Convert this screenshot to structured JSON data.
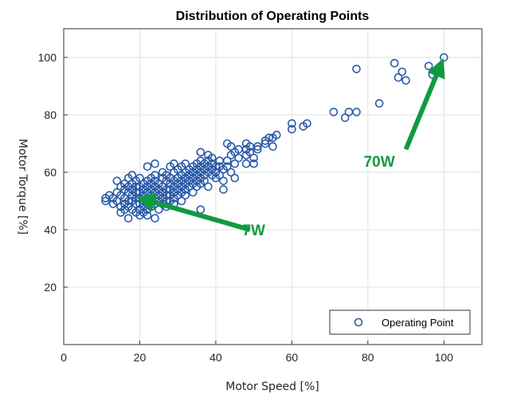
{
  "chart_data": {
    "type": "scatter",
    "title": "Distribution of Operating Points",
    "xlabel": "Motor Speed [%]",
    "ylabel": "Motor Torque [%]",
    "xlim": [
      0,
      110
    ],
    "ylim": [
      0,
      110
    ],
    "xticks": [
      "0",
      "20",
      "40",
      "60",
      "80",
      "100"
    ],
    "yticks": [
      "20",
      "40",
      "60",
      "80",
      "100"
    ],
    "grid": true,
    "legend_position": "bottom-right",
    "colors": {
      "marker": "#2a5aa8",
      "annotation": "#109a3f",
      "grid": "#e2e2e2",
      "axis": "#333333"
    },
    "series": [
      {
        "name": "Operating Point",
        "points": [
          [
            11,
            51
          ],
          [
            11,
            50
          ],
          [
            12,
            52
          ],
          [
            13,
            51
          ],
          [
            13,
            49
          ],
          [
            14,
            53
          ],
          [
            14,
            50
          ],
          [
            14,
            57
          ],
          [
            15,
            55
          ],
          [
            15,
            52
          ],
          [
            15,
            48
          ],
          [
            15,
            46
          ],
          [
            16,
            56
          ],
          [
            16,
            54
          ],
          [
            16,
            51
          ],
          [
            16,
            49
          ],
          [
            16,
            47
          ],
          [
            17,
            58
          ],
          [
            17,
            55
          ],
          [
            17,
            53
          ],
          [
            17,
            50
          ],
          [
            17,
            48
          ],
          [
            17,
            44
          ],
          [
            18,
            56
          ],
          [
            18,
            54
          ],
          [
            18,
            52
          ],
          [
            18,
            50
          ],
          [
            18,
            47
          ],
          [
            18,
            59
          ],
          [
            19,
            57
          ],
          [
            19,
            55
          ],
          [
            19,
            53
          ],
          [
            19,
            51
          ],
          [
            19,
            49
          ],
          [
            19,
            46
          ],
          [
            20,
            58
          ],
          [
            20,
            55
          ],
          [
            20,
            53
          ],
          [
            20,
            51
          ],
          [
            20,
            49
          ],
          [
            20,
            47
          ],
          [
            20,
            45
          ],
          [
            21,
            56
          ],
          [
            21,
            54
          ],
          [
            21,
            52
          ],
          [
            21,
            50
          ],
          [
            21,
            48
          ],
          [
            21,
            46
          ],
          [
            22,
            62
          ],
          [
            22,
            57
          ],
          [
            22,
            55
          ],
          [
            22,
            53
          ],
          [
            22,
            51
          ],
          [
            22,
            49
          ],
          [
            22,
            47
          ],
          [
            22,
            45
          ],
          [
            23,
            58
          ],
          [
            23,
            56
          ],
          [
            23,
            54
          ],
          [
            23,
            52
          ],
          [
            23,
            50
          ],
          [
            23,
            48
          ],
          [
            24,
            63
          ],
          [
            24,
            59
          ],
          [
            24,
            57
          ],
          [
            24,
            55
          ],
          [
            24,
            53
          ],
          [
            24,
            51
          ],
          [
            24,
            49
          ],
          [
            24,
            44
          ],
          [
            25,
            56
          ],
          [
            25,
            54
          ],
          [
            25,
            52
          ],
          [
            25,
            50
          ],
          [
            25,
            47
          ],
          [
            26,
            60
          ],
          [
            26,
            58
          ],
          [
            26,
            55
          ],
          [
            26,
            53
          ],
          [
            26,
            51
          ],
          [
            26,
            49
          ],
          [
            27,
            59
          ],
          [
            27,
            57
          ],
          [
            27,
            54
          ],
          [
            27,
            52
          ],
          [
            27,
            50
          ],
          [
            27,
            48
          ],
          [
            28,
            62
          ],
          [
            28,
            58
          ],
          [
            28,
            56
          ],
          [
            28,
            54
          ],
          [
            28,
            52
          ],
          [
            28,
            50
          ],
          [
            29,
            63
          ],
          [
            29,
            60
          ],
          [
            29,
            57
          ],
          [
            29,
            55
          ],
          [
            29,
            53
          ],
          [
            29,
            51
          ],
          [
            29,
            49
          ],
          [
            30,
            61
          ],
          [
            30,
            58
          ],
          [
            30,
            56
          ],
          [
            30,
            54
          ],
          [
            30,
            52
          ],
          [
            31,
            62
          ],
          [
            31,
            59
          ],
          [
            31,
            57
          ],
          [
            31,
            55
          ],
          [
            31,
            53
          ],
          [
            31,
            50
          ],
          [
            32,
            63
          ],
          [
            32,
            60
          ],
          [
            32,
            58
          ],
          [
            32,
            56
          ],
          [
            32,
            54
          ],
          [
            32,
            52
          ],
          [
            33,
            61
          ],
          [
            33,
            59
          ],
          [
            33,
            57
          ],
          [
            33,
            55
          ],
          [
            34,
            62
          ],
          [
            34,
            60
          ],
          [
            34,
            58
          ],
          [
            34,
            56
          ],
          [
            34,
            53
          ],
          [
            35,
            63
          ],
          [
            35,
            61
          ],
          [
            35,
            59
          ],
          [
            35,
            57
          ],
          [
            35,
            55
          ],
          [
            36,
            67
          ],
          [
            36,
            64
          ],
          [
            36,
            62
          ],
          [
            36,
            60
          ],
          [
            36,
            58
          ],
          [
            36,
            56
          ],
          [
            36,
            47
          ],
          [
            37,
            63
          ],
          [
            37,
            61
          ],
          [
            37,
            59
          ],
          [
            37,
            57
          ],
          [
            38,
            66
          ],
          [
            38,
            64
          ],
          [
            38,
            62
          ],
          [
            38,
            60
          ],
          [
            38,
            55
          ],
          [
            39,
            65
          ],
          [
            39,
            63
          ],
          [
            39,
            61
          ],
          [
            39,
            59
          ],
          [
            40,
            62
          ],
          [
            40,
            60
          ],
          [
            40,
            58
          ],
          [
            41,
            64
          ],
          [
            41,
            62
          ],
          [
            41,
            59
          ],
          [
            42,
            61
          ],
          [
            42,
            57
          ],
          [
            42,
            54
          ],
          [
            43,
            70
          ],
          [
            43,
            64
          ],
          [
            43,
            62
          ],
          [
            44,
            69
          ],
          [
            44,
            66
          ],
          [
            44,
            60
          ],
          [
            45,
            67
          ],
          [
            45,
            63
          ],
          [
            45,
            58
          ],
          [
            46,
            68
          ],
          [
            46,
            65
          ],
          [
            48,
            70
          ],
          [
            48,
            68
          ],
          [
            48,
            66
          ],
          [
            48,
            63
          ],
          [
            49,
            69
          ],
          [
            49,
            67
          ],
          [
            50,
            65
          ],
          [
            50,
            63
          ],
          [
            51,
            69
          ],
          [
            51,
            68
          ],
          [
            53,
            71
          ],
          [
            53,
            70
          ],
          [
            54,
            72
          ],
          [
            55,
            72
          ],
          [
            55,
            69
          ],
          [
            56,
            73
          ],
          [
            60,
            75
          ],
          [
            60,
            77
          ],
          [
            63,
            76
          ],
          [
            64,
            77
          ],
          [
            71,
            81
          ],
          [
            74,
            79
          ],
          [
            75,
            81
          ],
          [
            77,
            81
          ],
          [
            77,
            96
          ],
          [
            83,
            84
          ],
          [
            87,
            98
          ],
          [
            88,
            93
          ],
          [
            89,
            95
          ],
          [
            90,
            92
          ],
          [
            96,
            97
          ],
          [
            97,
            94
          ],
          [
            100,
            100
          ]
        ]
      }
    ],
    "annotations": [
      {
        "text": "7W",
        "at": [
          50,
          38
        ],
        "arrow_from": [
          49,
          40
        ],
        "arrow_to": [
          20,
          51
        ]
      },
      {
        "text": "70W",
        "at": [
          83,
          62
        ],
        "arrow_from": [
          90,
          68
        ],
        "arrow_to": [
          99.5,
          98.5
        ]
      }
    ]
  }
}
